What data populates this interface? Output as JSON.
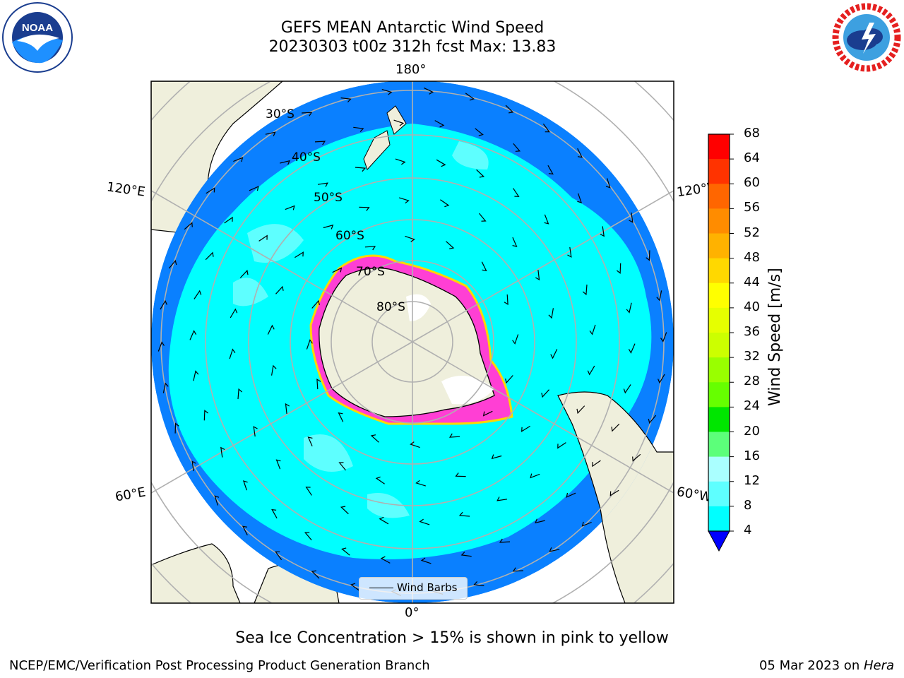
{
  "header": {
    "title": "GEFS MEAN Antarctic Wind Speed",
    "subtitle": "20230303 t00z 312h fcst   Max: 13.83"
  },
  "logos": {
    "left": {
      "name": "noaa-logo",
      "text": "NOAA",
      "ring_text": "NATIONAL OCEANIC AND ATMOSPHERIC ADMINISTRATION · U.S. DEPARTMENT OF COMMERCE"
    },
    "right": {
      "name": "nws-logo",
      "ring_text": "NATIONAL WEATHER SERVICE"
    }
  },
  "map": {
    "longitude_labels": {
      "top": "180°",
      "bottom": "0°",
      "upper_left": "120°E",
      "upper_right": "120°W",
      "lower_left": "60°E",
      "lower_right": "60°W"
    },
    "latitude_labels": [
      "30°S",
      "40°S",
      "50°S",
      "60°S",
      "70°S",
      "80°S"
    ],
    "legend": {
      "label": "Wind Barbs"
    },
    "colors": {
      "ocean_low": "#0a80ff",
      "ocean_mid": "#00ffff",
      "ocean_high": "#5effff",
      "land": "#efefdc",
      "sea_ice": "#ff3fd4",
      "sea_ice_edge": "#ffd700",
      "ice_shelf": "#ffffff",
      "grid": "#b0b0b0"
    }
  },
  "colorbar": {
    "title": "Wind Speed [m/s]",
    "ticks": [
      "68",
      "64",
      "60",
      "56",
      "52",
      "48",
      "44",
      "40",
      "36",
      "32",
      "28",
      "24",
      "20",
      "16",
      "12",
      "8",
      "4"
    ],
    "colors": [
      "#ff0000",
      "#ff3300",
      "#ff6600",
      "#ff8c00",
      "#ffb200",
      "#ffd800",
      "#ffff00",
      "#e6ff00",
      "#ccff00",
      "#99ff00",
      "#66ff00",
      "#00e600",
      "#5cff7a",
      "#aaffff",
      "#5effff",
      "#00ffff",
      "#0a80ff"
    ],
    "extend_color": "#0000ff"
  },
  "footnote": "Sea Ice Concentration > 15% is shown in pink to yellow",
  "credits": {
    "left": "NCEP/EMC/Verification Post Processing Product Generation Branch",
    "right_date": "05 Mar 2023 on ",
    "right_host": "Hera"
  }
}
